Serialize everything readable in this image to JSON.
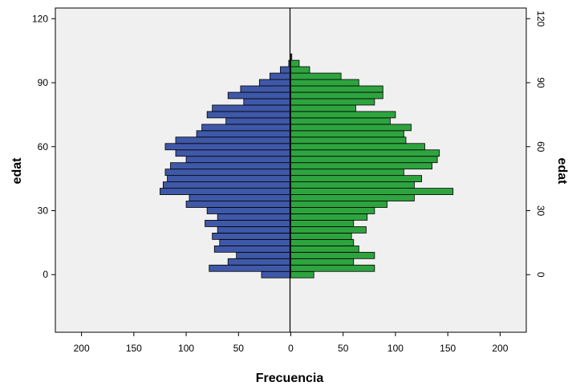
{
  "chart_data": {
    "type": "bar",
    "orientation": "horizontal-population-pyramid",
    "xlabel": "Frecuencia",
    "ylabel_left": "edat",
    "ylabel_right": "edat",
    "xlim": [
      -225,
      225
    ],
    "ylim": [
      -27,
      125
    ],
    "xticks": [
      -200,
      -150,
      -100,
      -50,
      0,
      50,
      100,
      150,
      200
    ],
    "xtick_labels": [
      "200",
      "150",
      "100",
      "50",
      "0",
      "50",
      "100",
      "150",
      "200"
    ],
    "yticks": [
      0,
      30,
      60,
      90,
      120
    ],
    "ytick_labels": [
      "0",
      "30",
      "60",
      "90",
      "120"
    ],
    "grid": false,
    "bin_width": 3,
    "colors": {
      "left": "#3f58a8",
      "right": "#2ea43f",
      "background": "#f0f0f0"
    },
    "series": [
      {
        "side": "left",
        "ages": [
          0,
          3,
          6,
          9,
          12,
          15,
          18,
          21,
          24,
          27,
          30,
          33,
          36,
          39,
          42,
          45,
          48,
          51,
          54,
          57,
          60,
          63,
          66,
          69,
          72,
          75,
          78,
          81,
          84,
          87,
          90,
          93,
          96,
          99,
          102,
          105
        ],
        "values": [
          28,
          78,
          60,
          52,
          73,
          68,
          75,
          70,
          82,
          70,
          80,
          100,
          97,
          125,
          122,
          118,
          120,
          115,
          100,
          110,
          120,
          110,
          90,
          85,
          62,
          80,
          75,
          45,
          60,
          48,
          30,
          20,
          10,
          2,
          0,
          0
        ]
      },
      {
        "side": "right",
        "ages": [
          0,
          3,
          6,
          9,
          12,
          15,
          18,
          21,
          24,
          27,
          30,
          33,
          36,
          39,
          42,
          45,
          48,
          51,
          54,
          57,
          60,
          63,
          66,
          69,
          72,
          75,
          78,
          81,
          84,
          87,
          90,
          93,
          96,
          99,
          102,
          105
        ],
        "values": [
          22,
          80,
          60,
          80,
          65,
          60,
          58,
          72,
          60,
          73,
          80,
          92,
          118,
          155,
          118,
          125,
          108,
          135,
          140,
          142,
          128,
          110,
          108,
          115,
          95,
          100,
          62,
          80,
          88,
          88,
          65,
          48,
          18,
          8,
          1,
          0
        ]
      }
    ]
  }
}
